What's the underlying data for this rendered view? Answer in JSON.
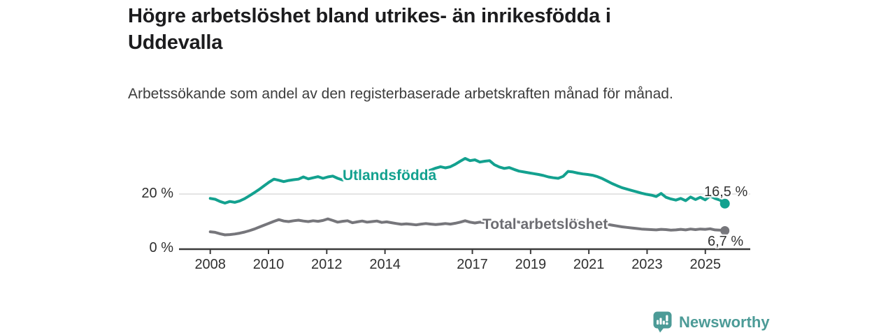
{
  "header": {
    "title": "Högre arbetslöshet bland utrikes- än inrikesfödda i Uddevalla",
    "subtitle": "Arbetssökande som andel av den registerbaserade arbetskraften månad för månad."
  },
  "chart_data": {
    "type": "line",
    "title": "Högre arbetslöshet bland utrikes- än inrikesfödda i Uddevalla",
    "subtitle": "Arbetssökande som andel av den registerbaserade arbetskraften månad för månad.",
    "x_unit": "year",
    "y_unit": "percent",
    "x_start": 2008.0,
    "x_end": 2025.67,
    "ylim": [
      0,
      34
    ],
    "grid": "y-20-only",
    "x_ticks": [
      {
        "year": 2008,
        "label": "2008"
      },
      {
        "year": 2010,
        "label": "2010"
      },
      {
        "year": 2012,
        "label": "2012"
      },
      {
        "year": 2014,
        "label": "2014"
      },
      {
        "year": 2017,
        "label": "2017"
      },
      {
        "year": 2019,
        "label": "2019"
      },
      {
        "year": 2021,
        "label": "2021"
      },
      {
        "year": 2023,
        "label": "2023"
      },
      {
        "year": 2025,
        "label": "2025"
      }
    ],
    "y_ticks": [
      {
        "value": 0,
        "label": "0 %"
      },
      {
        "value": 20,
        "label": "20 %"
      }
    ],
    "series": [
      {
        "name": "Utlandsfödda",
        "color": "#13a18f",
        "end_label": "16,5 %",
        "end_value": 16.5,
        "values": [
          18.4,
          18.1,
          17.3,
          16.7,
          17.3,
          17.0,
          17.5,
          18.3,
          19.4,
          20.5,
          21.7,
          23.0,
          24.3,
          25.4,
          25.0,
          24.5,
          24.9,
          25.2,
          25.4,
          26.2,
          25.5,
          25.9,
          26.3,
          25.7,
          26.2,
          26.5,
          25.7,
          25.1,
          25.8,
          26.3,
          25.8,
          26.1,
          26.4,
          25.9,
          26.2,
          26.0,
          25.7,
          26.1,
          26.5,
          26.2,
          26.6,
          27.0,
          27.3,
          27.7,
          28.2,
          28.7,
          29.4,
          29.9,
          29.5,
          29.9,
          30.8,
          31.9,
          32.9,
          32.1,
          32.4,
          31.6,
          31.9,
          32.1,
          30.6,
          29.8,
          29.3,
          29.6,
          28.9,
          28.3,
          28.0,
          27.7,
          27.4,
          27.1,
          26.7,
          26.2,
          25.9,
          25.7,
          26.4,
          28.2,
          28.0,
          27.6,
          27.3,
          27.1,
          26.8,
          26.3,
          25.6,
          24.7,
          23.8,
          23.0,
          22.3,
          21.8,
          21.3,
          20.8,
          20.3,
          19.9,
          19.6,
          19.1,
          20.2,
          18.8,
          18.2,
          17.8,
          18.4,
          17.6,
          18.9,
          18.0,
          18.8,
          17.9,
          19.3,
          18.4,
          17.8,
          16.5
        ]
      },
      {
        "name": "Total arbetslöshet",
        "color": "#76767b",
        "end_label": "6,7 %",
        "end_value": 6.7,
        "values": [
          6.3,
          6.1,
          5.6,
          5.2,
          5.3,
          5.5,
          5.8,
          6.2,
          6.7,
          7.3,
          8.0,
          8.7,
          9.4,
          10.1,
          10.7,
          10.2,
          10.0,
          10.3,
          10.5,
          10.2,
          10.0,
          10.3,
          10.1,
          10.4,
          11.0,
          10.4,
          9.8,
          10.1,
          10.3,
          9.6,
          9.9,
          10.2,
          9.8,
          10.0,
          10.2,
          9.7,
          9.9,
          9.6,
          9.3,
          9.0,
          9.2,
          9.0,
          8.8,
          9.1,
          9.3,
          9.1,
          8.9,
          9.1,
          9.3,
          9.1,
          9.4,
          9.8,
          10.3,
          9.8,
          9.5,
          9.8,
          9.6,
          9.9,
          10.1,
          9.7,
          9.5,
          9.8,
          10.1,
          9.8,
          9.5,
          9.7,
          9.4,
          9.2,
          9.4,
          9.1,
          8.9,
          9.1,
          9.4,
          10.2,
          10.5,
          10.2,
          10.0,
          10.2,
          9.9,
          9.6,
          9.3,
          9.0,
          8.7,
          8.4,
          8.1,
          7.9,
          7.7,
          7.5,
          7.3,
          7.2,
          7.1,
          7.0,
          7.2,
          7.1,
          6.9,
          7.0,
          7.2,
          7.0,
          7.3,
          7.1,
          7.3,
          7.2,
          7.4,
          7.0,
          6.9,
          6.7
        ]
      }
    ],
    "axis_color": "#3a3a3a",
    "gridline_color": "#dcdcdc"
  },
  "footer": {
    "brand": "Newsworthy",
    "brand_color": "#4c9b97"
  }
}
